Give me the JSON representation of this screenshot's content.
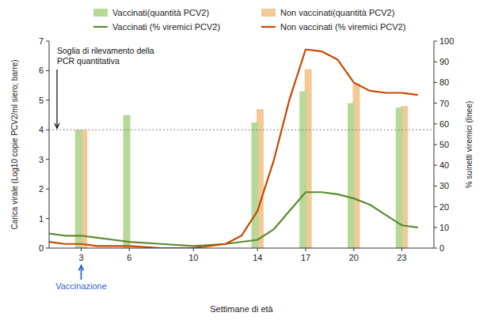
{
  "chart_data": {
    "type": "bar",
    "x_label": "Settimane di età",
    "y_label": "Carica virale (Log10 copie PCV2/ml siero; barre)",
    "y2_label": "% suinetti viremici (linee)",
    "xlim": [
      1,
      25
    ],
    "xticks": [
      3,
      6,
      10,
      14,
      17,
      20,
      23
    ],
    "ylim": [
      0,
      7
    ],
    "yticks": [
      0,
      1,
      2,
      3,
      4,
      5,
      6,
      7
    ],
    "y2lim": [
      0,
      100
    ],
    "y2ticks": [
      0,
      10,
      20,
      30,
      40,
      50,
      60,
      70,
      80,
      90,
      100
    ],
    "grid": false,
    "legend": "top",
    "series": [
      {
        "name": "Vaccinati(quantità PCV2)",
        "type": "bar",
        "color": "#b8d898",
        "x": [
          3,
          6,
          14,
          17,
          20,
          23
        ],
        "values": [
          4.0,
          4.5,
          4.25,
          5.3,
          4.9,
          4.75
        ]
      },
      {
        "name": "Non vaccinati(quantità PCV2)",
        "type": "bar",
        "color": "#f5c898",
        "x": [
          3,
          14,
          17,
          20,
          23
        ],
        "values": [
          4.0,
          4.7,
          6.05,
          5.55,
          4.8
        ]
      },
      {
        "name": "Vaccinati (% viremici PCV2)",
        "type": "line",
        "axis": "y2",
        "color": "#5a8a30",
        "x": [
          1,
          2,
          3,
          4,
          5,
          6,
          8,
          10,
          12,
          14,
          15,
          16,
          17,
          18,
          19,
          20,
          21,
          22,
          23,
          24
        ],
        "values": [
          7,
          6,
          6,
          5,
          4,
          3,
          2,
          1,
          2,
          4,
          9,
          18,
          27,
          27,
          26,
          24,
          21,
          16,
          11,
          10
        ]
      },
      {
        "name": "Non vaccinati (% viremici PCV2)",
        "type": "line",
        "axis": "y2",
        "color": "#c84800",
        "x": [
          1,
          2,
          3,
          4,
          5,
          6,
          8,
          10,
          12,
          13,
          14,
          15,
          16,
          17,
          18,
          19,
          20,
          21,
          22,
          23,
          24
        ],
        "values": [
          3,
          2,
          2,
          1,
          1,
          1,
          0,
          0,
          2,
          6,
          18,
          42,
          72,
          96,
          95,
          91,
          80,
          76,
          75,
          75,
          74
        ]
      }
    ],
    "annotations": [
      {
        "text": "Soglia di rilevamento della\nPCR quantitativa",
        "y": 4.0,
        "line_style": "dotted",
        "color": "gray"
      },
      {
        "text": "Vaccinazione",
        "x": 3,
        "color": "#3366cc"
      }
    ]
  }
}
